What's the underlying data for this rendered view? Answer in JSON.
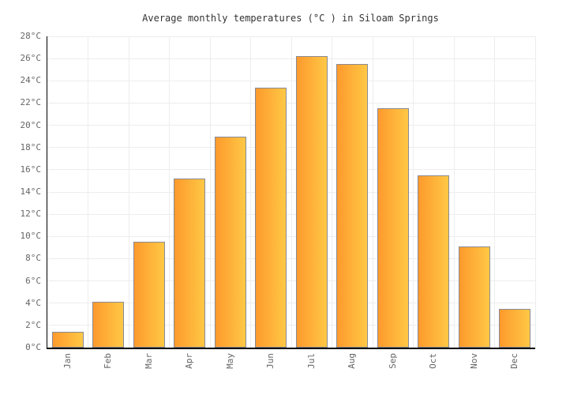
{
  "page": {
    "background": "#ffffff"
  },
  "chart_data": {
    "type": "bar",
    "title": "Average monthly temperatures (°C ) in Siloam Springs",
    "categories": [
      "Jan",
      "Feb",
      "Mar",
      "Apr",
      "May",
      "Jun",
      "Jul",
      "Aug",
      "Sep",
      "Oct",
      "Nov",
      "Dec"
    ],
    "values": [
      1.4,
      4.1,
      9.5,
      15.2,
      19.0,
      23.4,
      26.2,
      25.5,
      21.5,
      15.5,
      9.1,
      3.5
    ],
    "unit": "°C",
    "xlabel": "",
    "ylabel": "",
    "ylim": [
      0,
      28
    ],
    "ytick_step": 2,
    "yticks": [
      "0°C",
      "2°C",
      "4°C",
      "6°C",
      "8°C",
      "10°C",
      "12°C",
      "14°C",
      "16°C",
      "18°C",
      "20°C",
      "22°C",
      "24°C",
      "26°C",
      "28°C"
    ],
    "grid": true,
    "legend_position": "none",
    "colors": {
      "bar_gradient_left": "#fd9a2d",
      "bar_gradient_right": "#ffc845",
      "bar_border": "#8a8a93",
      "grid_line": "#ededed",
      "axis_line": "#000000",
      "tick_text": "#666666",
      "title_text": "#333333",
      "background": "#ffffff"
    }
  }
}
